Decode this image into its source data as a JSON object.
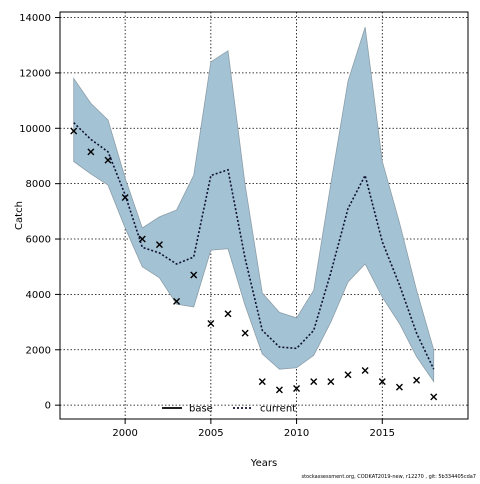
{
  "chart_data": {
    "type": "line",
    "title": "",
    "xlabel": "Years",
    "ylabel": "Catch",
    "xlim": [
      1996.2,
      2020.0
    ],
    "ylim": [
      -500,
      14200
    ],
    "x_ticks": [
      2000,
      2005,
      2010,
      2015
    ],
    "y_ticks": [
      0,
      2000,
      4000,
      6000,
      8000,
      10000,
      12000,
      14000
    ],
    "grid": true,
    "legend": {
      "placement": "bottom-center",
      "entries": [
        "base",
        "current"
      ]
    },
    "colors": {
      "band": "#a3c3d5",
      "band_edge": "#8d9ea9",
      "line": "#000000",
      "current": "#111133"
    },
    "years": [
      1997,
      1998,
      1999,
      2000,
      2001,
      2002,
      2003,
      2004,
      2005,
      2006,
      2007,
      2008,
      2009,
      2010,
      2011,
      2012,
      2013,
      2014,
      2015,
      2016,
      2017,
      2018
    ],
    "series": [
      {
        "name": "base",
        "style": "markers-x",
        "values": [
          9900,
          9150,
          8850,
          7500,
          6000,
          5800,
          3750,
          4700,
          2950,
          3300,
          2600,
          850,
          550,
          600,
          850,
          850,
          1100,
          1250,
          850,
          650,
          900,
          300
        ]
      },
      {
        "name": "current",
        "style": "dotted-line",
        "values": [
          10200,
          9600,
          9150,
          7600,
          5700,
          5500,
          5100,
          5350,
          8300,
          8500,
          5300,
          2700,
          2100,
          2050,
          2700,
          4800,
          7100,
          8300,
          5900,
          4350,
          2600,
          1300
        ]
      }
    ],
    "band": {
      "upper": [
        11800,
        10900,
        10300,
        8200,
        6400,
        6800,
        7050,
        8300,
        12400,
        12800,
        7950,
        4050,
        3350,
        3150,
        4150,
        8000,
        11700,
        13650,
        8800,
        6600,
        4150,
        2000
      ],
      "lower": [
        8800,
        8350,
        7950,
        6400,
        5000,
        4600,
        3650,
        3550,
        5600,
        5650,
        3600,
        1850,
        1300,
        1350,
        1800,
        3000,
        4450,
        5100,
        3900,
        2950,
        1750,
        850
      ]
    },
    "footer": "stockassessment.org, CODKAT2019-new, r12270 , git: 5b334405cda7"
  }
}
